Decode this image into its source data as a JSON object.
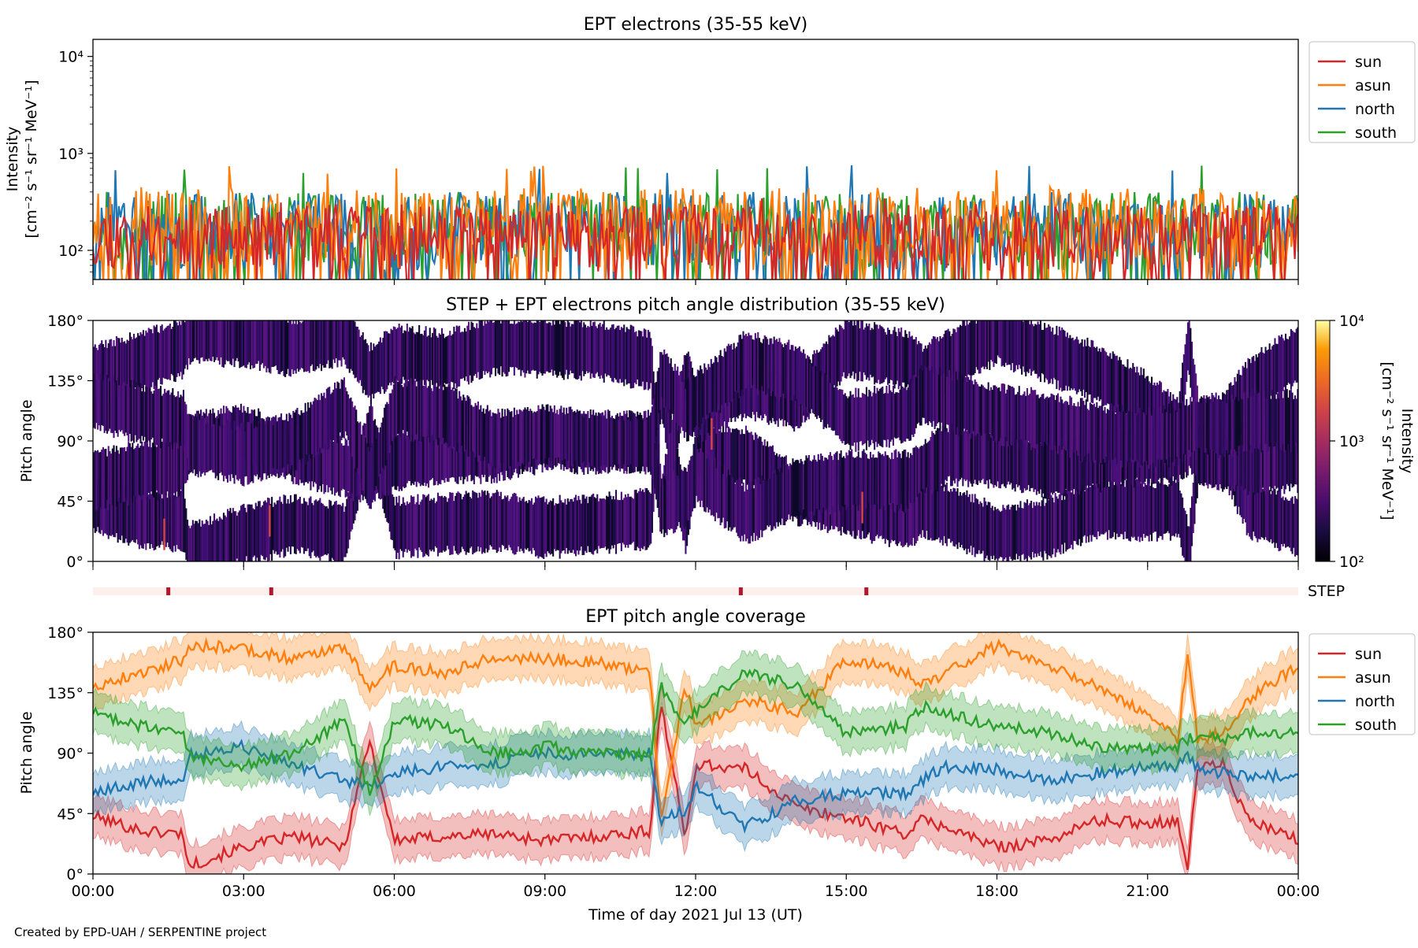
{
  "credit": "Created by EPD-UAH / SERPENTINE project",
  "colors": {
    "sun": "#d62728",
    "asun": "#ff7f0e",
    "north": "#1f77b4",
    "south": "#2ca02c",
    "step_strip": "#fdf0ec",
    "step_mark": "#b2182b"
  },
  "chart_data": [
    {
      "type": "line",
      "title": "EPT electrons (35-55 keV)",
      "ylabel": "Intensity",
      "ylabel_units": "[cm⁻² s⁻¹ sr⁻¹ MeV⁻¹]",
      "yscale": "log",
      "ylim": [
        50,
        15000
      ],
      "yticks": [
        "10²",
        "10³",
        "10⁴"
      ],
      "xlim": [
        "2021-07-13T00:00",
        "2021-07-14T00:00"
      ],
      "legend_position": "outside-right-top",
      "legend": [
        "sun",
        "asun",
        "north",
        "south"
      ],
      "series": [
        {
          "name": "sun",
          "typical_range": [
            60,
            300
          ],
          "peak": 350
        },
        {
          "name": "asun",
          "typical_range": [
            60,
            450
          ],
          "peak": 750
        },
        {
          "name": "north",
          "typical_range": [
            60,
            400
          ],
          "peak": 780
        },
        {
          "name": "south",
          "typical_range": [
            60,
            400
          ],
          "peak": 750
        }
      ]
    },
    {
      "type": "heatmap",
      "title": "STEP + EPT electrons pitch angle distribution (35-55 keV)",
      "ylabel": "Pitch angle",
      "yticks": [
        "0°",
        "45°",
        "90°",
        "135°",
        "180°"
      ],
      "ylim": [
        0,
        180
      ],
      "xlim": [
        "2021-07-13T00:00",
        "2021-07-14T00:00"
      ],
      "colorbar": {
        "label": "Intensity",
        "units": "[cm⁻² s⁻¹ sr⁻¹ MeV⁻¹]",
        "scale": "log",
        "range": [
          100,
          10000
        ],
        "ticks": [
          "10²",
          "10³",
          "10⁴"
        ],
        "colormap": "inferno"
      }
    },
    {
      "type": "strip",
      "label": "STEP",
      "marks_hours": [
        1.5,
        3.55,
        12.9,
        15.4
      ]
    },
    {
      "type": "line",
      "title": "EPT pitch angle coverage",
      "ylabel": "Pitch angle",
      "xlabel": "Time of day 2021 Jul 13 (UT)",
      "ylim": [
        0,
        180
      ],
      "yticks": [
        "0°",
        "45°",
        "90°",
        "135°",
        "180°"
      ],
      "xlim": [
        "2021-07-13T00:00",
        "2021-07-14T00:00"
      ],
      "xticks": [
        "00:00",
        "03:00",
        "06:00",
        "09:00",
        "12:00",
        "15:00",
        "18:00",
        "21:00",
        "00:00"
      ],
      "legend_position": "outside-right-top",
      "legend": [
        "sun",
        "asun",
        "north",
        "south"
      ],
      "band_halfwidth_deg": 15,
      "x_hours": [
        0,
        1,
        1.8,
        1.9,
        3,
        4,
        5,
        5.5,
        6,
        7,
        8,
        9,
        10,
        11.1,
        11.3,
        11.8,
        12,
        13,
        14,
        15,
        16.2,
        16.5,
        17,
        18,
        19,
        20,
        21,
        21.6,
        21.8,
        22,
        22.5,
        23,
        24
      ],
      "series": [
        {
          "name": "sun",
          "values": [
            43,
            32,
            30,
            6,
            20,
            28,
            20,
            100,
            25,
            28,
            30,
            25,
            28,
            32,
            130,
            25,
            82,
            78,
            50,
            42,
            30,
            40,
            35,
            20,
            25,
            40,
            38,
            40,
            5,
            80,
            82,
            40,
            25
          ]
        },
        {
          "name": "asun",
          "values": [
            140,
            150,
            160,
            170,
            168,
            160,
            170,
            140,
            155,
            150,
            162,
            160,
            158,
            150,
            40,
            140,
            110,
            130,
            120,
            160,
            150,
            140,
            150,
            170,
            155,
            140,
            118,
            100,
            165,
            100,
            105,
            130,
            155
          ]
        },
        {
          "name": "north",
          "values": [
            60,
            68,
            72,
            88,
            95,
            80,
            70,
            65,
            75,
            80,
            82,
            90,
            88,
            90,
            40,
            48,
            65,
            35,
            55,
            60,
            60,
            70,
            80,
            78,
            70,
            75,
            80,
            80,
            88,
            80,
            75,
            72,
            75
          ]
        },
        {
          "name": "south",
          "values": [
            120,
            110,
            105,
            88,
            80,
            90,
            115,
            60,
            115,
            110,
            90,
            95,
            90,
            88,
            140,
            112,
            120,
            150,
            140,
            105,
            110,
            125,
            120,
            110,
            105,
            95,
            92,
            95,
            100,
            102,
            100,
            105,
            105
          ]
        }
      ]
    }
  ]
}
